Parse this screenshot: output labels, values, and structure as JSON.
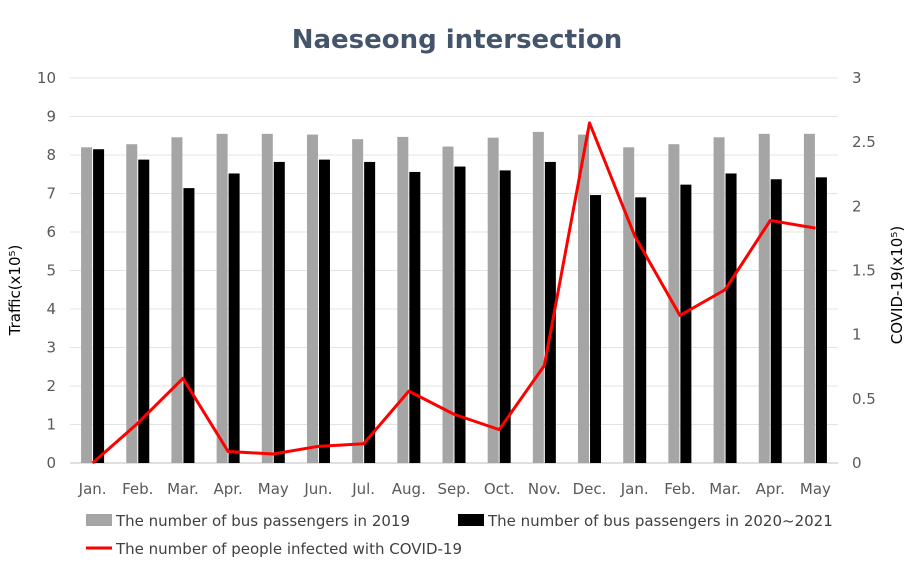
{
  "chart_data": {
    "type": "bar",
    "title": "Naeseong  intersection",
    "xlabel": "",
    "ylabel": "Traffic(x10⁵)",
    "y2label": "COVID-19(x10⁵)",
    "categories": [
      "Jan.",
      "Feb.",
      "Mar.",
      "Apr.",
      "May",
      "Jun.",
      "Jul.",
      "Aug.",
      "Sep.",
      "Oct.",
      "Nov.",
      "Dec.",
      "Jan.",
      "Feb.",
      "Mar.",
      "Apr.",
      "May"
    ],
    "ylim": [
      0,
      10
    ],
    "y2lim": [
      0,
      3
    ],
    "yticks": [
      "0",
      "1",
      "2",
      "3",
      "4",
      "5",
      "6",
      "7",
      "8",
      "9",
      "10"
    ],
    "y2ticks": [
      "0",
      "0.5",
      "1",
      "1.5",
      "2",
      "2.5",
      "3"
    ],
    "grid": true,
    "legend_position": "bottom",
    "series": [
      {
        "name": "The number of bus passengers in 2019",
        "type": "bar",
        "axis": "left",
        "color": "#A5A5A5",
        "values": [
          8.2,
          8.28,
          8.46,
          8.55,
          8.55,
          8.53,
          8.41,
          8.47,
          8.22,
          8.45,
          8.6,
          8.53,
          8.2,
          8.28,
          8.46,
          8.55,
          8.55
        ]
      },
      {
        "name": "The number of bus passengers in 2020~2021",
        "type": "bar",
        "axis": "left",
        "color": "#000000",
        "values": [
          8.15,
          7.88,
          7.14,
          7.52,
          7.82,
          7.88,
          7.82,
          7.56,
          7.7,
          7.6,
          7.82,
          6.96,
          6.9,
          7.23,
          7.52,
          7.37,
          7.42
        ]
      },
      {
        "name": "The number of people infected with COVID-19",
        "type": "line",
        "axis": "right",
        "color": "#FF0000",
        "values": [
          0.0,
          0.31,
          0.66,
          0.09,
          0.07,
          0.13,
          0.15,
          0.56,
          0.38,
          0.26,
          0.76,
          2.65,
          1.77,
          1.15,
          1.35,
          1.89,
          1.83
        ]
      }
    ]
  }
}
